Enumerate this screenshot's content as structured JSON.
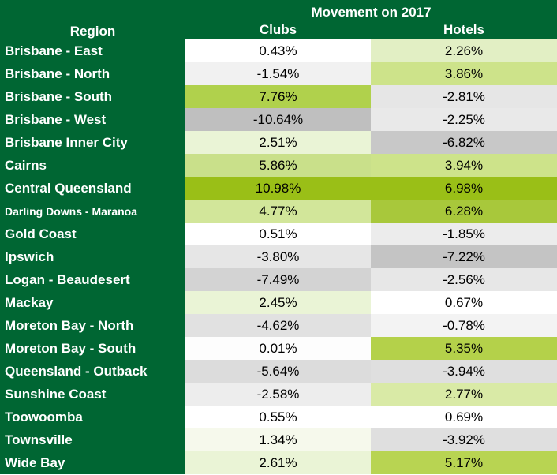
{
  "table": {
    "region_header": "Region",
    "group_header": "Movement on 2017",
    "col_clubs": "Clubs",
    "col_hotels": "Hotels",
    "rows": [
      {
        "region": "Brisbane - East",
        "clubs": "0.43%",
        "hotels": "2.26%",
        "clubs_color": "#ffffff",
        "hotels_color": "#e2efc4"
      },
      {
        "region": "Brisbane - North",
        "clubs": "-1.54%",
        "hotels": "3.86%",
        "clubs_color": "#f1f1f1",
        "hotels_color": "#cde38a"
      },
      {
        "region": "Brisbane - South",
        "clubs": "7.76%",
        "hotels": "-2.81%",
        "clubs_color": "#b0d14c",
        "hotels_color": "#e6e6e6"
      },
      {
        "region": "Brisbane - West",
        "clubs": "-10.64%",
        "hotels": "-2.25%",
        "clubs_color": "#bfbfbf",
        "hotels_color": "#e9e9e9"
      },
      {
        "region": "Brisbane Inner City",
        "clubs": "2.51%",
        "hotels": "-6.82%",
        "clubs_color": "#eaf4d6",
        "hotels_color": "#c8c8c8"
      },
      {
        "region": "Cairns",
        "clubs": "5.86%",
        "hotels": "3.94%",
        "clubs_color": "#c9e08a",
        "hotels_color": "#cde38a"
      },
      {
        "region": "Central Queensland",
        "clubs": "10.98%",
        "hotels": "6.98%",
        "clubs_color": "#9abf17",
        "hotels_color": "#9abf17"
      },
      {
        "region": "Darling Downs - Maranoa",
        "clubs": "4.77%",
        "hotels": "6.28%",
        "clubs_color": "#d2e69a",
        "hotels_color": "#a8c83b"
      },
      {
        "region": "Gold Coast",
        "clubs": "0.51%",
        "hotels": "-1.85%",
        "clubs_color": "#ffffff",
        "hotels_color": "#ececec"
      },
      {
        "region": "Ipswich",
        "clubs": "-3.80%",
        "hotels": "-7.22%",
        "clubs_color": "#e6e6e6",
        "hotels_color": "#c4c4c4"
      },
      {
        "region": "Logan - Beaudesert",
        "clubs": "-7.49%",
        "hotels": "-2.56%",
        "clubs_color": "#d3d3d3",
        "hotels_color": "#e7e7e7"
      },
      {
        "region": "Mackay",
        "clubs": "2.45%",
        "hotels": "0.67%",
        "clubs_color": "#eaf4d6",
        "hotels_color": "#ffffff"
      },
      {
        "region": "Moreton Bay - North",
        "clubs": "-4.62%",
        "hotels": "-0.78%",
        "clubs_color": "#e1e1e1",
        "hotels_color": "#f3f3f3"
      },
      {
        "region": "Moreton Bay - South",
        "clubs": "0.01%",
        "hotels": "5.35%",
        "clubs_color": "#fdfdfd",
        "hotels_color": "#b4d14a"
      },
      {
        "region": "Queensland - Outback",
        "clubs": "-5.64%",
        "hotels": "-3.94%",
        "clubs_color": "#dcdcdc",
        "hotels_color": "#dfdfdf"
      },
      {
        "region": "Sunshine Coast",
        "clubs": "-2.58%",
        "hotels": "2.77%",
        "clubs_color": "#ededed",
        "hotels_color": "#d9eaa6"
      },
      {
        "region": "Toowoomba",
        "clubs": "0.55%",
        "hotels": "0.69%",
        "clubs_color": "#ffffff",
        "hotels_color": "#ffffff"
      },
      {
        "region": "Townsville",
        "clubs": "1.34%",
        "hotels": "-3.92%",
        "clubs_color": "#f6f9ec",
        "hotels_color": "#dfdfdf"
      },
      {
        "region": "Wide Bay",
        "clubs": "2.61%",
        "hotels": "5.17%",
        "clubs_color": "#eaf4d6",
        "hotels_color": "#b8d452"
      }
    ]
  }
}
